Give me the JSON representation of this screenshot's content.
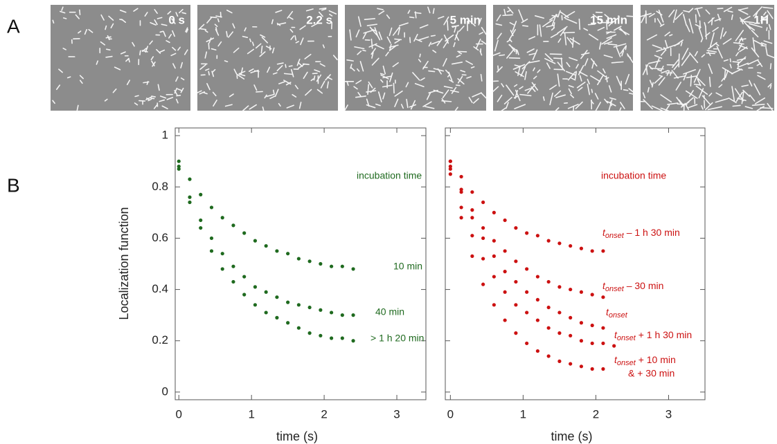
{
  "panel_labels": [
    "A",
    "B"
  ],
  "images": [
    {
      "label": "0 s"
    },
    {
      "label": "2.2 s"
    },
    {
      "label": "5 min"
    },
    {
      "label": "15 min"
    },
    {
      "label": "1H"
    }
  ],
  "chart_data": [
    {
      "type": "scatter",
      "ylabel": "Localization function",
      "xlabel": "time (s)",
      "legend_title": "incubation time",
      "color": "#1f6a1f",
      "xlim": [
        -0.05,
        3.4
      ],
      "ylim": [
        -0.03,
        1.03
      ],
      "xticks": [
        0,
        1,
        2,
        3
      ],
      "yticks": [
        0,
        0.2,
        0.4,
        0.6,
        0.8,
        1
      ],
      "series": [
        {
          "name": "10 min",
          "x": [
            0,
            0.15,
            0.3,
            0.45,
            0.6,
            0.75,
            0.9,
            1.05,
            1.2,
            1.35,
            1.5,
            1.65,
            1.8,
            1.95,
            2.1,
            2.25,
            2.4
          ],
          "values": [
            0.9,
            0.83,
            0.77,
            0.72,
            0.68,
            0.65,
            0.62,
            0.59,
            0.57,
            0.55,
            0.54,
            0.52,
            0.51,
            0.5,
            0.49,
            0.49,
            0.48
          ]
        },
        {
          "name": "40 min",
          "x": [
            0,
            0.15,
            0.3,
            0.45,
            0.6,
            0.75,
            0.9,
            1.05,
            1.2,
            1.35,
            1.5,
            1.65,
            1.8,
            1.95,
            2.1,
            2.25,
            2.4
          ],
          "values": [
            0.88,
            0.76,
            0.67,
            0.6,
            0.54,
            0.49,
            0.45,
            0.41,
            0.39,
            0.37,
            0.35,
            0.34,
            0.33,
            0.32,
            0.31,
            0.3,
            0.3
          ]
        },
        {
          "name": "> 1 h 20 min",
          "x": [
            0,
            0.15,
            0.3,
            0.45,
            0.6,
            0.75,
            0.9,
            1.05,
            1.2,
            1.35,
            1.5,
            1.65,
            1.8,
            1.95,
            2.1,
            2.25,
            2.4
          ],
          "values": [
            0.87,
            0.74,
            0.64,
            0.55,
            0.48,
            0.43,
            0.38,
            0.34,
            0.31,
            0.29,
            0.27,
            0.25,
            0.23,
            0.22,
            0.21,
            0.21,
            0.2
          ]
        }
      ]
    },
    {
      "type": "scatter",
      "xlabel": "time (s)",
      "legend_title": "incubation time",
      "color": "#cc1111",
      "xlim": [
        -0.07,
        3.5
      ],
      "ylim": [
        -0.03,
        1.03
      ],
      "xticks": [
        0,
        1,
        2,
        3
      ],
      "yticks": [
        0,
        0.2,
        0.4,
        0.6,
        0.8,
        1
      ],
      "series": [
        {
          "name": [
            "t",
            "onset",
            " – 1 h 30 min"
          ],
          "x": [
            0,
            0.15,
            0.3,
            0.45,
            0.6,
            0.75,
            0.9,
            1.05,
            1.2,
            1.35,
            1.5,
            1.65,
            1.8,
            1.95,
            2.1
          ],
          "values": [
            0.9,
            0.84,
            0.78,
            0.74,
            0.7,
            0.67,
            0.64,
            0.62,
            0.61,
            0.59,
            0.58,
            0.57,
            0.56,
            0.55,
            0.55
          ]
        },
        {
          "name": [
            "t",
            "onset",
            " – 30 min"
          ],
          "x": [
            0,
            0.15,
            0.3,
            0.45,
            0.6,
            0.75,
            0.9,
            1.05,
            1.2,
            1.35,
            1.5,
            1.65,
            1.8,
            1.95,
            2.1
          ],
          "values": [
            0.88,
            0.79,
            0.71,
            0.64,
            0.59,
            0.55,
            0.51,
            0.48,
            0.45,
            0.43,
            0.41,
            0.4,
            0.39,
            0.38,
            0.37
          ]
        },
        {
          "name": [
            "t",
            "onset"
          ],
          "x": [
            0,
            0.15,
            0.3,
            0.45,
            0.6,
            0.75,
            0.9,
            1.05,
            1.2,
            1.35,
            1.5,
            1.65,
            1.8,
            1.95,
            2.1
          ],
          "values": [
            0.9,
            0.78,
            0.68,
            0.6,
            0.53,
            0.47,
            0.43,
            0.39,
            0.36,
            0.33,
            0.31,
            0.29,
            0.27,
            0.26,
            0.25
          ]
        },
        {
          "name": [
            "t",
            "onset",
            " + 1 h 30 min"
          ],
          "x": [
            0,
            0.15,
            0.3,
            0.45,
            0.6,
            0.75,
            0.9,
            1.05,
            1.2,
            1.35,
            1.5,
            1.65,
            1.8,
            1.95,
            2.1,
            2.25
          ],
          "values": [
            0.85,
            0.72,
            0.61,
            0.52,
            0.45,
            0.39,
            0.34,
            0.31,
            0.28,
            0.25,
            0.23,
            0.22,
            0.2,
            0.19,
            0.19,
            0.18
          ]
        },
        {
          "name": [
            "t",
            "onset",
            " + 10 min",
            "& + 30 min"
          ],
          "x": [
            0,
            0.15,
            0.3,
            0.45,
            0.6,
            0.75,
            0.9,
            1.05,
            1.2,
            1.35,
            1.5,
            1.65,
            1.8,
            1.95,
            2.1
          ],
          "values": [
            0.87,
            0.68,
            0.53,
            0.42,
            0.34,
            0.28,
            0.23,
            0.19,
            0.16,
            0.14,
            0.12,
            0.11,
            0.1,
            0.09,
            0.09
          ]
        }
      ]
    }
  ]
}
